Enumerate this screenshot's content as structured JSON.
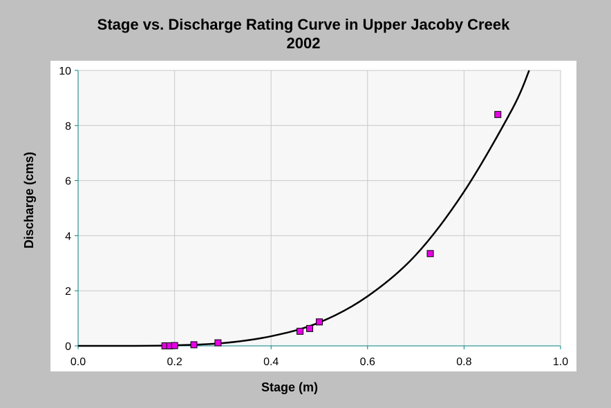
{
  "chart_data": {
    "type": "scatter",
    "title": "Stage vs. Discharge Rating Curve in Upper Jacoby Creek",
    "subtitle": "2002",
    "xlabel": "Stage (m)",
    "ylabel": "Discharge (cms)",
    "xlim": [
      0.0,
      1.0
    ],
    "ylim": [
      0,
      10
    ],
    "xticks": [
      "0.0",
      "0.2",
      "0.4",
      "0.6",
      "0.8",
      "1.0"
    ],
    "yticks": [
      "0",
      "2",
      "4",
      "6",
      "8",
      "10"
    ],
    "grid": true,
    "legend": "none",
    "series": [
      {
        "kind": "points",
        "marker": "square",
        "color": "#e600e6",
        "x": [
          0.18,
          0.19,
          0.2,
          0.24,
          0.29,
          0.46,
          0.48,
          0.5,
          0.73,
          0.87
        ],
        "y": [
          0.0,
          0.0,
          0.01,
          0.04,
          0.11,
          0.53,
          0.63,
          0.87,
          3.35,
          8.4
        ]
      },
      {
        "kind": "fitted-curve",
        "color": "#000000",
        "x": [
          0.0,
          0.1,
          0.2,
          0.3,
          0.4,
          0.5,
          0.6,
          0.7,
          0.8,
          0.9,
          0.935
        ],
        "y": [
          0.0,
          0.0,
          0.02,
          0.1,
          0.35,
          0.85,
          1.8,
          3.3,
          5.6,
          8.6,
          10.0
        ]
      }
    ]
  },
  "colors": {
    "background": "#c0c0c0",
    "plot_area": "#f7f7f7",
    "frame": "#ffffff",
    "grid": "#c8c8c8",
    "axis": "#008080",
    "marker": "#e600e6",
    "curve": "#000000"
  }
}
